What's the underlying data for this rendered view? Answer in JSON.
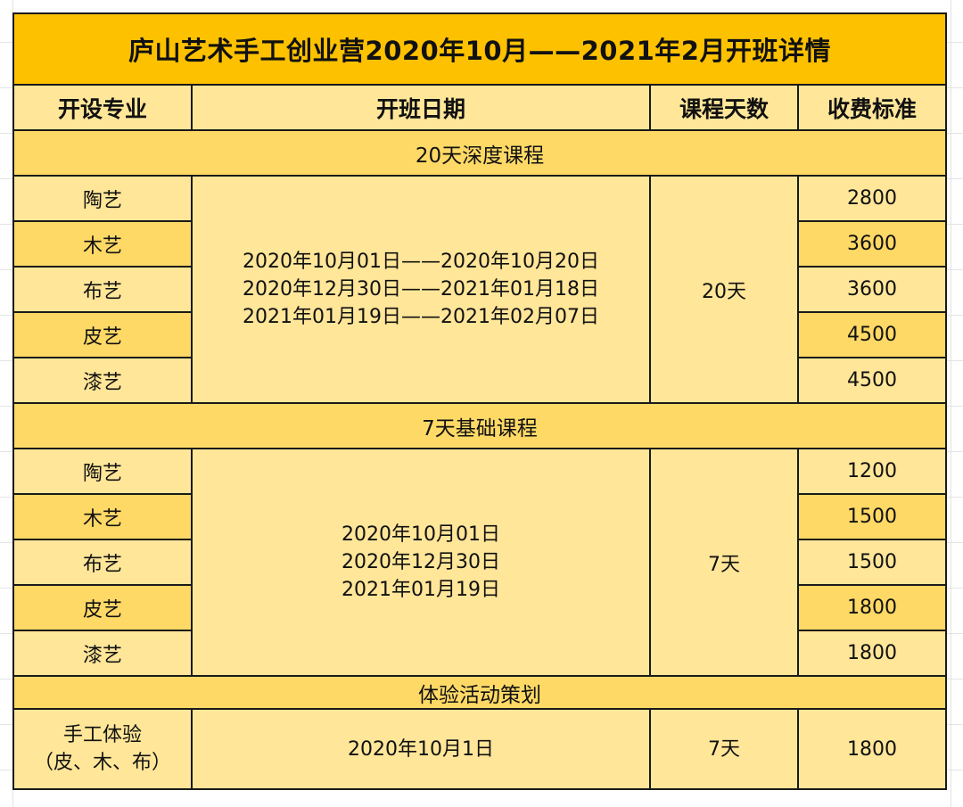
{
  "title": "庐山艺术手工创业营2020年10月——2021年2月开班详情",
  "headers": [
    "开设专业",
    "开班日期",
    "课程天数",
    "收费标准"
  ],
  "sections": [
    {
      "name": "20天深度课程",
      "majors": [
        "陶艺",
        "木艺",
        "布艺",
        "皮艺",
        "漆艺"
      ],
      "dates": "2020年10月01日——2020年10月20日\n2020年12月30日——2021年01月18日\n2021年01月19日——2021年02月07日",
      "days": "20天",
      "fees": [
        "2800",
        "3600",
        "3600",
        "4500",
        "4500"
      ]
    },
    {
      "name": "7天基础课程",
      "majors": [
        "陶艺",
        "木艺",
        "布艺",
        "皮艺",
        "漆艺"
      ],
      "dates": "2020年10月01日\n2020年12月30日\n2021年01月19日",
      "days": "7天",
      "fees": [
        "1200",
        "1500",
        "1500",
        "1800",
        "1800"
      ]
    }
  ],
  "experience": {
    "name": "体验活动策划",
    "major": "手工体验\n（皮、木、布）",
    "dates": "2020年10月1日",
    "days": "7天",
    "fee": "1800"
  }
}
